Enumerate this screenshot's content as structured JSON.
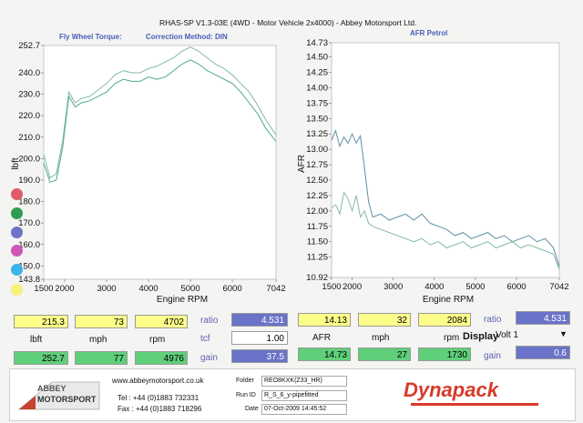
{
  "header": {
    "title": "RHAS-SP V1.3-03E  (4WD - Motor Vehicle 2x4000) - Abbey Motorsport Ltd."
  },
  "torque_panel": {
    "title": "Fly Wheel Torque:",
    "method": "Correction Method: DIN"
  },
  "afr_panel": {
    "title": "AFR Petrol"
  },
  "chart_data": [
    {
      "type": "line",
      "title": "",
      "xlabel": "Engine RPM",
      "ylabel": "lbft",
      "xlim": [
        1500,
        7042
      ],
      "ylim": [
        143.8,
        252.7
      ],
      "x_ticks": [
        "1500",
        "2000",
        "3000",
        "4000",
        "5000",
        "6000",
        "7042"
      ],
      "y_ticks": [
        "252.7",
        "240.0",
        "230.0",
        "220.0",
        "210.0",
        "200.0",
        "190.0",
        "180.0",
        "170.0",
        "160.0",
        "150.0",
        "143.8"
      ],
      "series": [
        {
          "color": "#4ea890",
          "x": [
            1500,
            1650,
            1800,
            1950,
            2100,
            2250,
            2400,
            2600,
            2800,
            3000,
            3200,
            3400,
            3600,
            3800,
            4000,
            4200,
            4400,
            4600,
            4800,
            5000,
            5200,
            5400,
            5600,
            5800,
            6000,
            6200,
            6400,
            6600,
            6800,
            7042
          ],
          "y": [
            198,
            189,
            190,
            205,
            229,
            224,
            226,
            227,
            229,
            231,
            235,
            237,
            236,
            236,
            238,
            237,
            238,
            241,
            244,
            246,
            244,
            241,
            239,
            237,
            235,
            231,
            226,
            221,
            214,
            208
          ]
        },
        {
          "color": "#7fb9a4",
          "x": [
            1500,
            1650,
            1800,
            1950,
            2100,
            2250,
            2400,
            2600,
            2800,
            3000,
            3200,
            3400,
            3600,
            3800,
            4000,
            4200,
            4400,
            4600,
            4800,
            5000,
            5200,
            5400,
            5600,
            5800,
            6000,
            6200,
            6400,
            6600,
            6800,
            7042
          ],
          "y": [
            202,
            191,
            193,
            208,
            231,
            226,
            228,
            229,
            232,
            235,
            239,
            241,
            240,
            240,
            242,
            243,
            245,
            247,
            250,
            252,
            250,
            247,
            244,
            242,
            239,
            235,
            231,
            225,
            218,
            211
          ]
        }
      ]
    },
    {
      "type": "line",
      "title": "",
      "xlabel": "Engine RPM",
      "ylabel": "AFR",
      "xlim": [
        1500,
        7042
      ],
      "ylim": [
        10.92,
        14.73
      ],
      "x_ticks": [
        "1500",
        "2000",
        "3000",
        "4000",
        "5000",
        "6000",
        "7042"
      ],
      "y_ticks": [
        "14.73",
        "14.50",
        "14.25",
        "14.00",
        "13.75",
        "13.50",
        "13.25",
        "13.00",
        "12.75",
        "12.50",
        "12.25",
        "12.00",
        "11.75",
        "11.50",
        "11.25",
        "10.92"
      ],
      "series": [
        {
          "color": "#5d8fa4",
          "x": [
            1500,
            1600,
            1700,
            1800,
            1900,
            2000,
            2100,
            2200,
            2300,
            2400,
            2500,
            2700,
            2900,
            3100,
            3300,
            3500,
            3700,
            3900,
            4100,
            4300,
            4500,
            4700,
            4900,
            5100,
            5300,
            5500,
            5700,
            5900,
            6100,
            6300,
            6500,
            6700,
            6900,
            7042
          ],
          "y": [
            13.15,
            13.3,
            13.05,
            13.2,
            13.1,
            13.25,
            13.1,
            13.22,
            12.7,
            12.15,
            11.9,
            11.95,
            11.85,
            11.9,
            11.95,
            11.85,
            11.95,
            11.8,
            11.75,
            11.7,
            11.6,
            11.65,
            11.55,
            11.6,
            11.65,
            11.55,
            11.6,
            11.5,
            11.55,
            11.6,
            11.5,
            11.55,
            11.4,
            11.1
          ]
        },
        {
          "color": "#86b9a6",
          "x": [
            1500,
            1600,
            1700,
            1800,
            1900,
            2000,
            2100,
            2200,
            2300,
            2400,
            2500,
            2700,
            2900,
            3100,
            3300,
            3500,
            3700,
            3900,
            4100,
            4300,
            4500,
            4700,
            4900,
            5100,
            5300,
            5500,
            5700,
            5900,
            6100,
            6300,
            6500,
            6700,
            6900,
            7042
          ],
          "y": [
            12.05,
            12.1,
            11.95,
            12.3,
            12.2,
            12.0,
            12.25,
            11.9,
            12.0,
            11.8,
            11.75,
            11.7,
            11.65,
            11.6,
            11.55,
            11.5,
            11.55,
            11.45,
            11.5,
            11.4,
            11.45,
            11.5,
            11.4,
            11.45,
            11.5,
            11.4,
            11.45,
            11.5,
            11.4,
            11.45,
            11.4,
            11.35,
            11.3,
            11.05
          ]
        }
      ]
    }
  ],
  "legend_dots": [
    "#e25b6a",
    "#2f9b4f",
    "#6f73c8",
    "#cf57b8",
    "#3ab5ea",
    "#f6f27a"
  ],
  "readouts_left": {
    "row1": {
      "lbft": "215.3",
      "mph": "73",
      "rpm": "4702",
      "ratio_label": "ratio",
      "ratio": "4.531"
    },
    "row2": {
      "lbl_lbft": "lbft",
      "lbl_mph": "mph",
      "lbl_rpm": "rpm",
      "tcf_label": "tcf",
      "tcf": "1.00"
    },
    "row3": {
      "lbft": "252.7",
      "mph": "77",
      "rpm": "4976",
      "gain_label": "gain",
      "gain": "37.5"
    }
  },
  "readouts_right": {
    "row1": {
      "afr": "14.13",
      "mph": "32",
      "rpm": "2084",
      "ratio_label": "ratio",
      "ratio": "4.531"
    },
    "row2": {
      "lbl_afr": "AFR",
      "lbl_mph": "mph",
      "lbl_rpm": "rpm",
      "display_label": "Display",
      "display_value": "Volt 1"
    },
    "row3": {
      "afr": "14.73",
      "mph": "27",
      "rpm": "1730",
      "gain_label": "gain",
      "gain": "0.6"
    }
  },
  "footer": {
    "logo_top": "ABBEY",
    "logo_bottom": "MOTORSPORT",
    "website": "www.abbeymotorsport.co.uk",
    "tel": "Tel : +44 (0)1883 732331",
    "fax": "Fax : +44 (0)1883 718296",
    "folder_label": "Folder",
    "folder_value": "REO8KXK(Z33_HR)",
    "run_label": "Run ID",
    "run_value": "R_S_6_y-pipefitted",
    "date_label": "Date",
    "date_value": "07-Oct-2009    14:45:52",
    "brand": "Dynapack"
  }
}
